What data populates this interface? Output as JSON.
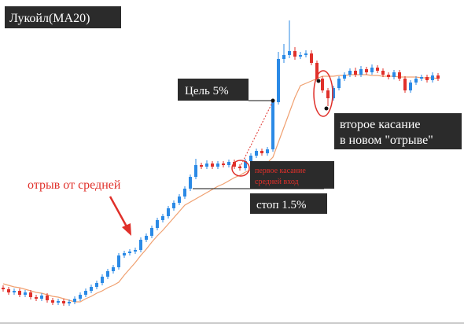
{
  "chart_data": {
    "type": "candlestick",
    "title": "Лукойл(MA20)",
    "ylim": [
      0,
      416
    ],
    "up_color": "#2b8ae6",
    "down_color": "#e0302a",
    "open": [
      50,
      48,
      44,
      46,
      41,
      44,
      38,
      36,
      40,
      34,
      31,
      33,
      30,
      32,
      36,
      41,
      46,
      51,
      56,
      64,
      71,
      76,
      91,
      94,
      96,
      98,
      111,
      116,
      126,
      136,
      141,
      151,
      158,
      166,
      176,
      191,
      206,
      204,
      208,
      204,
      208,
      206,
      210,
      204,
      202,
      211,
      218,
      224,
      221,
      226,
      286,
      341,
      346,
      351,
      344,
      346,
      348,
      336,
      316,
      301,
      291,
      304,
      316,
      321,
      326,
      321,
      328,
      324,
      330,
      326,
      321,
      318,
      324,
      316,
      301,
      311,
      316,
      318,
      314,
      320
    ],
    "high": [
      53,
      51,
      49,
      49,
      47,
      47,
      41,
      43,
      43,
      37,
      36,
      36,
      35,
      39,
      44,
      49,
      54,
      59,
      67,
      74,
      79,
      94,
      97,
      99,
      101,
      114,
      119,
      129,
      139,
      144,
      154,
      161,
      169,
      179,
      194,
      214,
      209,
      212,
      211,
      211,
      211,
      213,
      213,
      207,
      214,
      221,
      227,
      227,
      229,
      289,
      350,
      360,
      390,
      356,
      350,
      352,
      352,
      339,
      319,
      304,
      307,
      319,
      324,
      329,
      330,
      332,
      331,
      334,
      333,
      329,
      324,
      327,
      327,
      319,
      314,
      319,
      321,
      321,
      324,
      323
    ],
    "low": [
      45,
      41,
      41,
      38,
      38,
      35,
      33,
      33,
      31,
      28,
      28,
      27,
      27,
      29,
      33,
      38,
      43,
      48,
      53,
      61,
      68,
      73,
      88,
      91,
      93,
      95,
      108,
      113,
      123,
      133,
      138,
      148,
      155,
      163,
      173,
      188,
      201,
      201,
      201,
      201,
      203,
      203,
      201,
      199,
      199,
      208,
      215,
      218,
      218,
      223,
      283,
      336,
      342,
      340,
      341,
      343,
      333,
      313,
      298,
      281,
      288,
      301,
      313,
      318,
      318,
      318,
      321,
      321,
      323,
      318,
      315,
      315,
      313,
      298,
      298,
      308,
      313,
      311,
      311,
      313
    ],
    "close": [
      48,
      44,
      46,
      41,
      44,
      38,
      36,
      40,
      34,
      31,
      33,
      30,
      32,
      36,
      41,
      46,
      51,
      56,
      64,
      71,
      76,
      91,
      94,
      96,
      98,
      111,
      116,
      126,
      136,
      141,
      151,
      158,
      166,
      176,
      191,
      206,
      204,
      208,
      204,
      208,
      206,
      210,
      204,
      202,
      211,
      218,
      224,
      221,
      226,
      286,
      341,
      346,
      351,
      344,
      346,
      348,
      336,
      316,
      301,
      291,
      304,
      316,
      321,
      326,
      321,
      328,
      324,
      330,
      326,
      321,
      318,
      324,
      316,
      301,
      311,
      316,
      318,
      314,
      320,
      316
    ],
    "ma": {
      "color": "#f0a070",
      "values": [
        55,
        53,
        51,
        50,
        48,
        46,
        44,
        43,
        41,
        39,
        38,
        36,
        34,
        32,
        32,
        36,
        39,
        43,
        46,
        50,
        53,
        57,
        66,
        74,
        82,
        91,
        99,
        108,
        116,
        123,
        131,
        139,
        147,
        155,
        159,
        163,
        167,
        171,
        175,
        179,
        182,
        186,
        190,
        193,
        197,
        200,
        203,
        206,
        209,
        216,
        235,
        254,
        273,
        292,
        307,
        310,
        313,
        316,
        319,
        319,
        319,
        320,
        320,
        321,
        321,
        321,
        321,
        320,
        320,
        319,
        319,
        319,
        318,
        318,
        318,
        318,
        317,
        317,
        317,
        316
      ]
    },
    "annotations": {
      "target": "Цель 5%",
      "first_touch": [
        "первое касание",
        "средней вход"
      ],
      "stop": "стоп 1.5%",
      "breakaway": "отрыв от средней",
      "second_touch": [
        "второе касание",
        "в новом \"отрыве\""
      ]
    }
  }
}
